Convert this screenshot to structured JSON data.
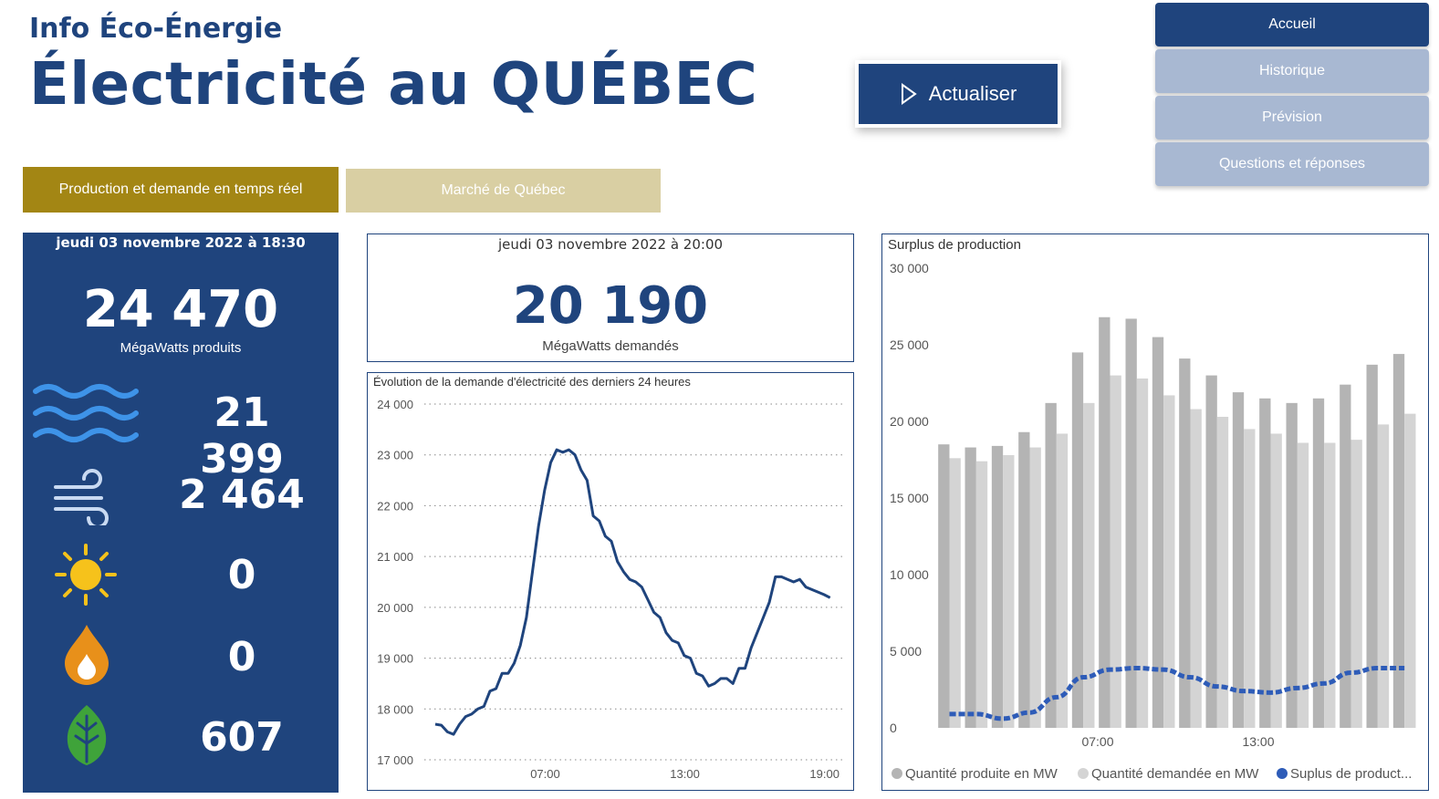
{
  "header": {
    "subtitle": "Info Éco-Énergie",
    "title": "Électricité au QUÉBEC",
    "refresh_label": "Actualiser"
  },
  "nav": [
    {
      "label": "Accueil",
      "active": true
    },
    {
      "label": "Historique",
      "active": false
    },
    {
      "label": "Prévision",
      "active": false
    },
    {
      "label": "Questions et réponses",
      "active": false
    }
  ],
  "tabs": [
    {
      "label": "Production et demande en temps réel",
      "active": true
    },
    {
      "label": "Marché de Québec",
      "active": false
    }
  ],
  "production": {
    "date": "jeudi 03 novembre 2022 à 18:30",
    "total": "24 470",
    "unit": "MégaWatts produits",
    "sources": [
      {
        "icon": "water-waves-icon",
        "value": "21 399"
      },
      {
        "icon": "wind-icon",
        "value": "2 464"
      },
      {
        "icon": "sun-icon",
        "value": "0"
      },
      {
        "icon": "fire-drop-icon",
        "value": "0"
      },
      {
        "icon": "leaf-icon",
        "value": "607"
      }
    ]
  },
  "demand": {
    "date": "jeudi 03 novembre 2022 à 20:00",
    "total": "20 190",
    "unit": "MégaWatts demandés"
  },
  "colors": {
    "primary": "#1f447d",
    "gold": "#a38614",
    "gold_light": "#d9cfa3",
    "nav_inactive": "#a8b8d2",
    "bar_produced": "#b4b4b4",
    "bar_demanded": "#d4d4d4",
    "surplus_line": "#2e5cb8"
  },
  "chart_data": [
    {
      "type": "line",
      "title": "Évolution de la demande d'électricité des derniers 24 heures",
      "ylim": [
        17000,
        24000
      ],
      "yticks": [
        "24 000",
        "23 000",
        "22 000",
        "21 000",
        "20 000",
        "19 000",
        "18 000",
        "17 000"
      ],
      "xticks": [
        "07:00",
        "13:00",
        "19:00"
      ],
      "grid": true,
      "series": [
        {
          "x": [
            0.0,
            0.3,
            0.6,
            0.9,
            1.2,
            1.5,
            1.8,
            2.1,
            2.4,
            2.7,
            3.0,
            3.3,
            3.6,
            3.9,
            4.2,
            4.5,
            4.8,
            5.1,
            5.4,
            5.7,
            6.0,
            6.3,
            6.6,
            6.9,
            7.2,
            7.5,
            7.8,
            8.1,
            8.4,
            8.7,
            9.0,
            9.3,
            9.6,
            9.9,
            10.2,
            10.5,
            10.8,
            11.1,
            11.4,
            11.7,
            12.0,
            12.3,
            12.6,
            12.9,
            13.2,
            13.5,
            13.8,
            14.1,
            14.4,
            14.7,
            15.0,
            15.3,
            15.6,
            15.9,
            16.2,
            16.5,
            16.8,
            17.1,
            17.4,
            17.7,
            18.0,
            18.3,
            18.6,
            18.9,
            19.2,
            19.5
          ],
          "y": [
            17700,
            17680,
            17550,
            17500,
            17700,
            17850,
            17900,
            18000,
            18050,
            18350,
            18400,
            18700,
            18700,
            18900,
            19250,
            19800,
            20700,
            21600,
            22300,
            22850,
            23100,
            23050,
            23100,
            23000,
            22700,
            22500,
            21800,
            21700,
            21400,
            21300,
            20900,
            20700,
            20550,
            20500,
            20400,
            20150,
            19900,
            19800,
            19500,
            19350,
            19300,
            19050,
            19000,
            18700,
            18650,
            18450,
            18500,
            18600,
            18600,
            18500,
            18800,
            18800,
            19200,
            19500,
            19800,
            20100,
            20600,
            20600,
            20550,
            20500,
            20550,
            20400,
            20350,
            20300,
            20250,
            20190
          ]
        }
      ]
    },
    {
      "type": "bar",
      "title": "Surplus de production",
      "ylim": [
        0,
        30000
      ],
      "yticks": [
        "30 000",
        "25 000",
        "20 000",
        "15 000",
        "10 000",
        "5 000",
        "0"
      ],
      "xticks": [
        "07:00",
        "13:00"
      ],
      "legend": "bottom",
      "series": [
        {
          "name": "Quantité produite en MW",
          "values": [
            18500,
            18300,
            18400,
            19300,
            21200,
            24500,
            26800,
            26700,
            25500,
            24100,
            23000,
            21900,
            21500,
            21200,
            21500,
            22400,
            23700,
            24400
          ]
        },
        {
          "name": "Quantité demandée en MW",
          "values": [
            17600,
            17400,
            17800,
            18300,
            19200,
            21200,
            23000,
            22800,
            21700,
            20800,
            20300,
            19500,
            19200,
            18600,
            18600,
            18800,
            19800,
            20500
          ]
        },
        {
          "name": "Suplus de product...",
          "type": "line",
          "values": [
            900,
            900,
            600,
            1000,
            2000,
            3300,
            3800,
            3900,
            3800,
            3300,
            2700,
            2400,
            2300,
            2600,
            2900,
            3600,
            3900,
            3900
          ]
        }
      ]
    }
  ]
}
